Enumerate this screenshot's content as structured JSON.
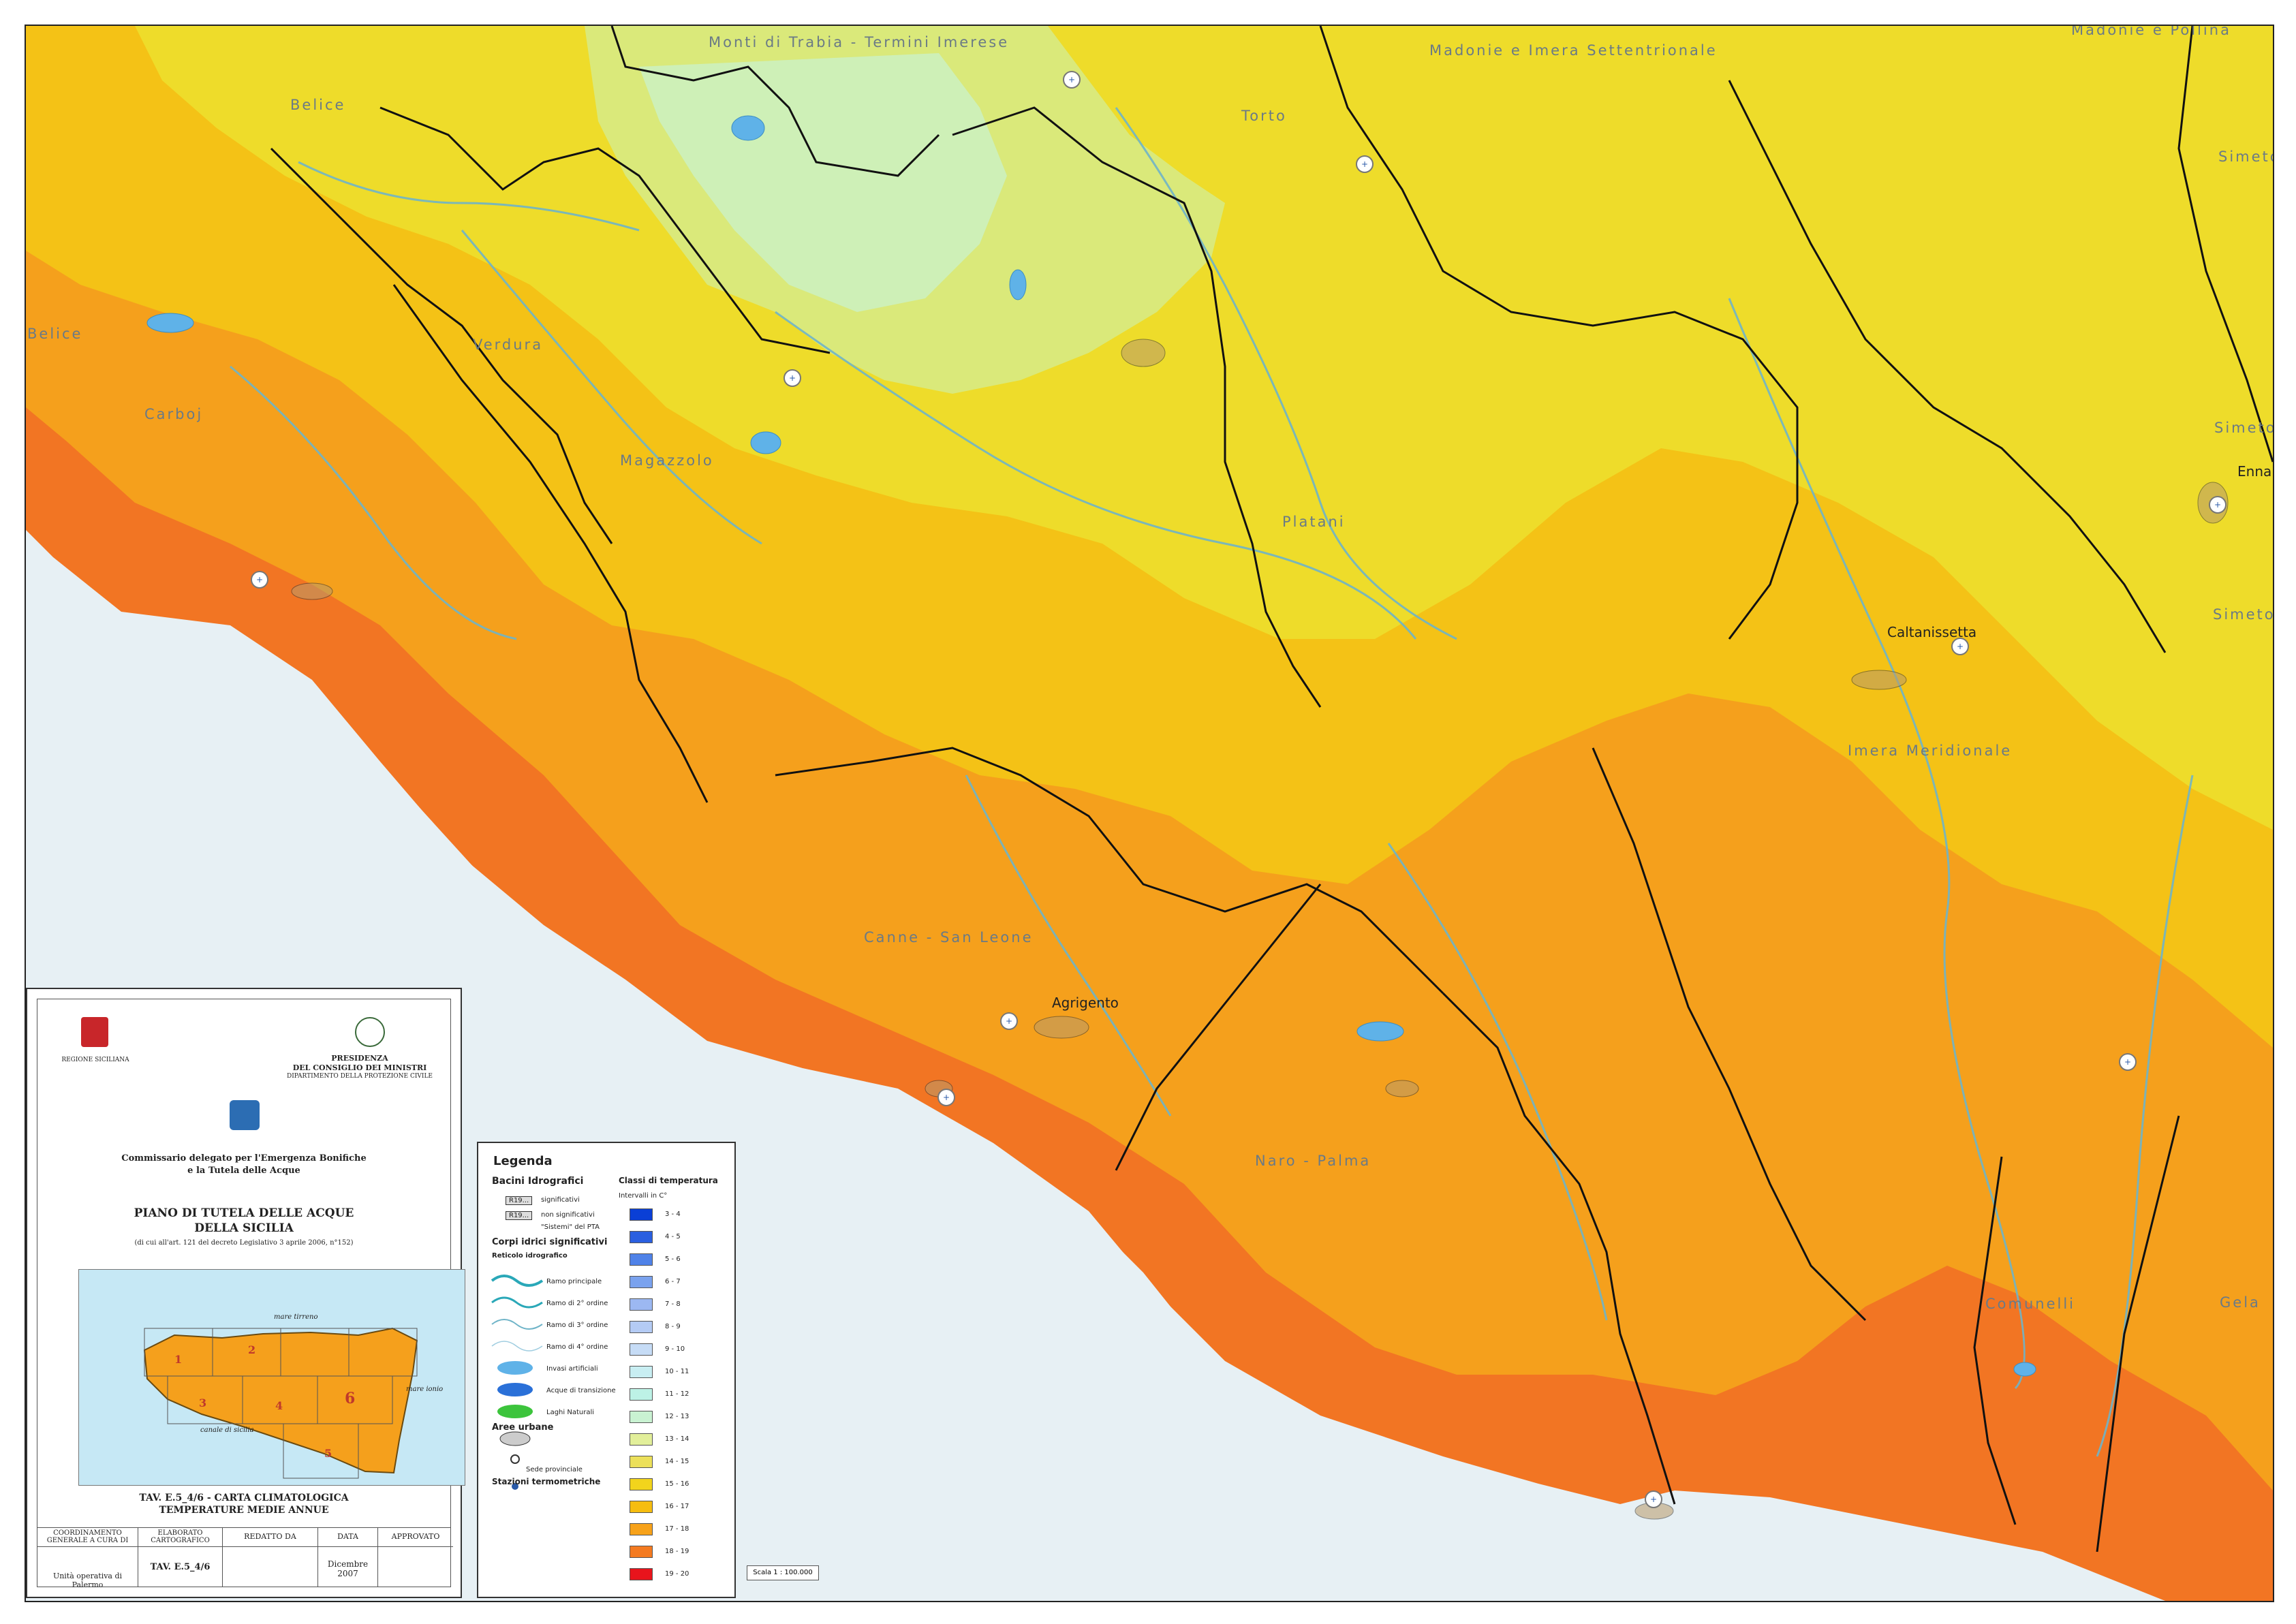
{
  "basins": [
    {
      "name": "Monti di Trabia - Termini Imerese"
    },
    {
      "name": "Madonie e Imera Settentrionale"
    },
    {
      "name": "Madonie e Pollina"
    },
    {
      "name": "Belice"
    },
    {
      "name": "Torto"
    },
    {
      "name": "Simeto"
    },
    {
      "name": "Belice"
    },
    {
      "name": "Verdura"
    },
    {
      "name": "Carboj"
    },
    {
      "name": "Magazzolo"
    },
    {
      "name": "Platani"
    },
    {
      "name": "Simeto"
    },
    {
      "name": "Enna"
    },
    {
      "name": "Simeto"
    },
    {
      "name": "Caltanissetta"
    },
    {
      "name": "Imera Meridionale"
    },
    {
      "name": "Canne - San Leone"
    },
    {
      "name": "Agrigento"
    },
    {
      "name": "Naro - Palma"
    },
    {
      "name": "Comunelli"
    },
    {
      "name": "Gela"
    }
  ],
  "title_block": {
    "region_label": "REGIONE SICILIANA",
    "presidency_line1": "PRESIDENZA",
    "presidency_line2": "DEL CONSIGLIO DEI MINISTRI",
    "presidency_line3": "DIPARTIMENTO DELLA PROTEZIONE CIVILE",
    "commissioner_line1": "Commissario delegato per l'Emergenza Bonifiche",
    "commissioner_line2": "e la Tutela delle Acque",
    "plan_title_line1": "PIANO DI TUTELA DELLE ACQUE",
    "plan_title_line2": "DELLA SICILIA",
    "plan_subtitle": "(di cui all'art. 121 del decreto Legislativo 3 aprile 2006, n°152)",
    "sheet_title_line1": "TAV. E.5_4/6 - CARTA CLIMATOLOGICA",
    "sheet_title_line2": "TEMPERATURE MEDIE ANNUE",
    "inset_sea_north": "mare tirreno",
    "inset_sea_east": "mare ionio",
    "inset_sea_south": "canale di sicilia",
    "inset_numbers": [
      "1",
      "2",
      "3",
      "4",
      "5",
      "6"
    ],
    "table": {
      "col1_header": "COORDINAMENTO GENERALE A CURA DI",
      "col2_header": "ELABORATO CARTOGRAFICO",
      "col3_header": "REDATTO DA",
      "col4_header": "DATA",
      "col5_header": "APPROVATO",
      "col1_value": "Unità operativa di Palermo",
      "col2_value": "TAV. E.5_4/6",
      "col4_value": "Dicembre 2007"
    }
  },
  "legend": {
    "title": "Legenda",
    "basins_heading": "Bacini Idrografici",
    "basin_sig": "significativi",
    "basin_nonsig": "non significativi",
    "basin_code": "R19...",
    "basin_ptа": "\"Sistemi\" del PTA",
    "water_bodies_heading": "Corpi idrici significativi",
    "network_heading": "Reticolo idrografico",
    "ramo1": "Ramo principale",
    "ramo2": "Ramo di 2° ordine",
    "ramo3": "Ramo di 3° ordine",
    "ramo4": "Ramo di 4° ordine",
    "invasi": "Invasi artificiali",
    "acque_transizione": "Acque di transizione",
    "laghi": "Laghi Naturali",
    "urban_heading": "Aree urbane",
    "sede": "Sede provinciale",
    "stations_heading": "Stazioni termometriche",
    "temp_heading": "Classi di temperatura",
    "temp_units": "Intervalli in C°",
    "classes": [
      {
        "label": "3 - 4",
        "color": "#0a3fd6"
      },
      {
        "label": "4 - 5",
        "color": "#2a5fe0"
      },
      {
        "label": "5 - 6",
        "color": "#4f82e8"
      },
      {
        "label": "6 - 7",
        "color": "#7aa2ee"
      },
      {
        "label": "7 - 8",
        "color": "#9cb8f2"
      },
      {
        "label": "8 - 9",
        "color": "#b4cbf4"
      },
      {
        "label": "9 - 10",
        "color": "#c6dcf6"
      },
      {
        "label": "10 - 11",
        "color": "#c8eef2"
      },
      {
        "label": "11 - 12",
        "color": "#bdf2e6"
      },
      {
        "label": "12 - 13",
        "color": "#c9f2d2"
      },
      {
        "label": "13 - 14",
        "color": "#e2ef9a"
      },
      {
        "label": "14 - 15",
        "color": "#ece05a"
      },
      {
        "label": "15 - 16",
        "color": "#f2d41c"
      },
      {
        "label": "16 - 17",
        "color": "#f6bd10"
      },
      {
        "label": "17 - 18",
        "color": "#f7a21a"
      },
      {
        "label": "18 - 19",
        "color": "#f47a20"
      },
      {
        "label": "19 - 20",
        "color": "#e8141c"
      }
    ]
  },
  "scale_text": "Scala 1 : 100.000",
  "colors": {
    "sea": "#e7f0f4",
    "zone_cool": "#d4ec8f",
    "zone_yellow": "#eedc2a",
    "zone_yellow_orange": "#f4c216",
    "zone_orange": "#f5a01c",
    "zone_deep_orange": "#f27523",
    "river": "#6fb4c8",
    "basin_border": "#111111"
  }
}
